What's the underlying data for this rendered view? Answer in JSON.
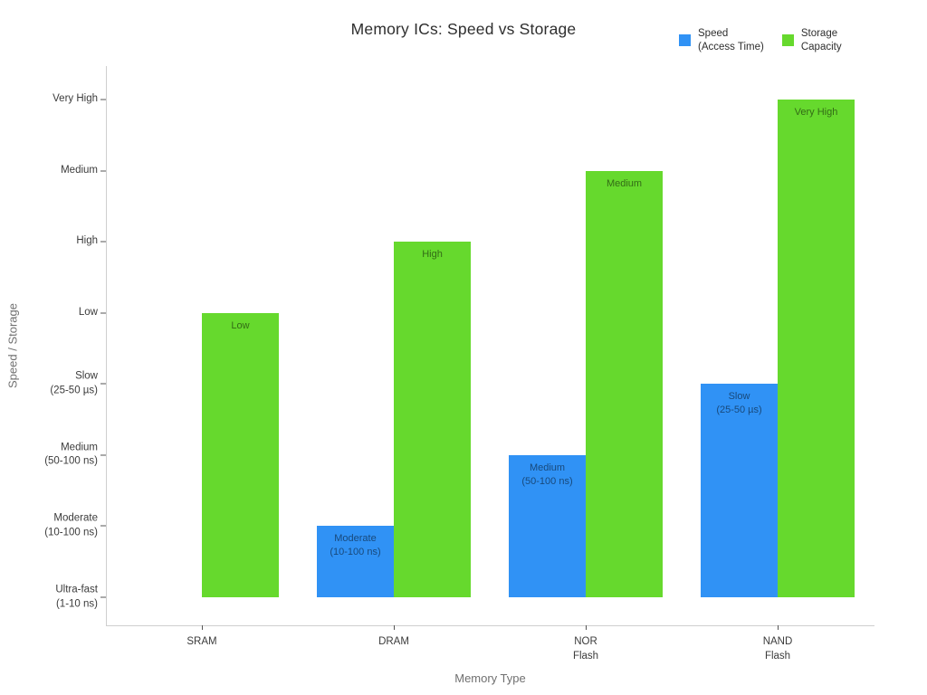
{
  "title": "Memory ICs: Speed vs Storage",
  "legend": {
    "items": [
      {
        "id": "speed",
        "label": "Speed\n(Access Time)",
        "color": "#3092F5"
      },
      {
        "id": "storage",
        "label": "Storage\nCapacity",
        "color": "#66D92D"
      }
    ]
  },
  "chart_data": {
    "type": "bar",
    "title": "Memory ICs: Speed vs Storage",
    "xlabel": "Memory Type",
    "ylabel": "Speed / Storage",
    "categories": [
      "SRAM",
      "DRAM",
      "NOR\nFlash",
      "NAND\nFlash"
    ],
    "series": [
      {
        "name": "Speed (Access Time)",
        "color": "#3092F5",
        "label_color": "#18497b",
        "values": [
          0,
          1,
          2,
          3
        ],
        "value_labels": [
          "",
          "Moderate\n(10-100 ns)",
          "Medium\n(50-100 ns)",
          "Slow\n(25-50 µs)"
        ]
      },
      {
        "name": "Storage Capacity",
        "color": "#66D92D",
        "label_color": "#336c16",
        "values": [
          4,
          5,
          6,
          7
        ],
        "value_labels": [
          "Low",
          "High",
          "Medium",
          "Very High"
        ]
      }
    ],
    "yticks": [
      {
        "value": 0,
        "label": "Ultra-fast\n(1-10 ns)"
      },
      {
        "value": 1,
        "label": "Moderate\n(10-100 ns)"
      },
      {
        "value": 2,
        "label": "Medium\n(50-100 ns)"
      },
      {
        "value": 3,
        "label": "Slow\n(25-50 µs)"
      },
      {
        "value": 4,
        "label": "Low"
      },
      {
        "value": 5,
        "label": "High"
      },
      {
        "value": 6,
        "label": "Medium"
      },
      {
        "value": 7,
        "label": "Very High"
      }
    ],
    "ylim": [
      -0.4,
      7.5
    ],
    "grid": false,
    "legend_position": "top-right",
    "bar_text_position": "inside-top",
    "background": "#ffffff"
  }
}
